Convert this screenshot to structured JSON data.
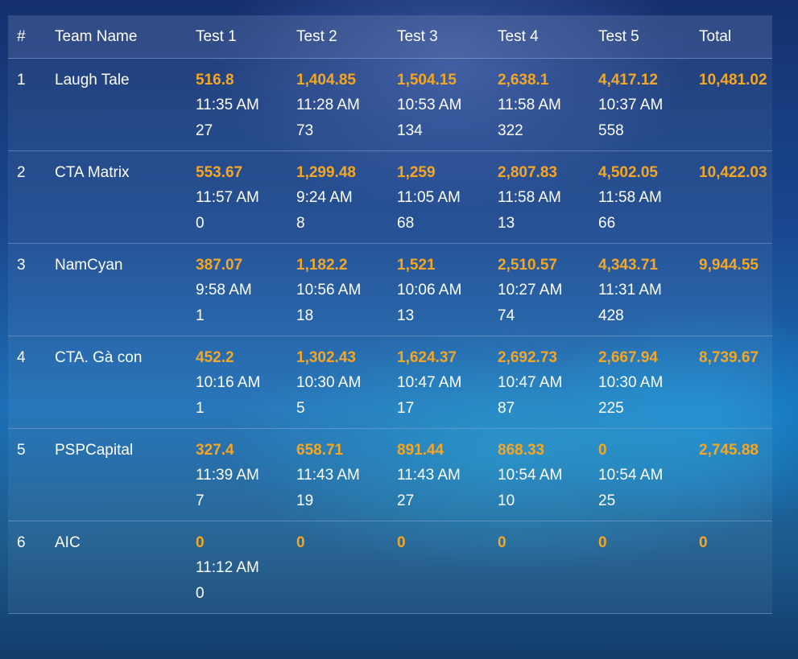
{
  "columns": [
    "#",
    "Team Name",
    "Test 1",
    "Test 2",
    "Test 3",
    "Test 4",
    "Test 5",
    "Total"
  ],
  "colors": {
    "score": "#f5a623",
    "text": "#ffffff"
  },
  "rows": [
    {
      "rank": "1",
      "team": "Laugh Tale",
      "tests": [
        {
          "score": "516.8",
          "time": "11:35 AM",
          "count": "27"
        },
        {
          "score": "1,404.85",
          "time": "11:28 AM",
          "count": "73"
        },
        {
          "score": "1,504.15",
          "time": "10:53 AM",
          "count": "134"
        },
        {
          "score": "2,638.1",
          "time": "11:58 AM",
          "count": "322"
        },
        {
          "score": "4,417.12",
          "time": "10:37 AM",
          "count": "558"
        }
      ],
      "total": "10,481.02"
    },
    {
      "rank": "2",
      "team": "CTA Matrix",
      "tests": [
        {
          "score": "553.67",
          "time": "11:57 AM",
          "count": "0"
        },
        {
          "score": "1,299.48",
          "time": "9:24 AM",
          "count": "8"
        },
        {
          "score": "1,259",
          "time": "11:05 AM",
          "count": "68"
        },
        {
          "score": "2,807.83",
          "time": "11:58 AM",
          "count": "13"
        },
        {
          "score": "4,502.05",
          "time": "11:58 AM",
          "count": "66"
        }
      ],
      "total": "10,422.03"
    },
    {
      "rank": "3",
      "team": "NamCyan",
      "tests": [
        {
          "score": "387.07",
          "time": "9:58 AM",
          "count": "1"
        },
        {
          "score": "1,182.2",
          "time": "10:56 AM",
          "count": "18"
        },
        {
          "score": "1,521",
          "time": "10:06 AM",
          "count": "13"
        },
        {
          "score": "2,510.57",
          "time": "10:27 AM",
          "count": "74"
        },
        {
          "score": "4,343.71",
          "time": "11:31 AM",
          "count": "428"
        }
      ],
      "total": "9,944.55"
    },
    {
      "rank": "4",
      "team": "CTA. Gà con",
      "tests": [
        {
          "score": "452.2",
          "time": "10:16 AM",
          "count": "1"
        },
        {
          "score": "1,302.43",
          "time": "10:30 AM",
          "count": "5"
        },
        {
          "score": "1,624.37",
          "time": "10:47 AM",
          "count": "17"
        },
        {
          "score": "2,692.73",
          "time": "10:47 AM",
          "count": "87"
        },
        {
          "score": "2,667.94",
          "time": "10:30 AM",
          "count": "225"
        }
      ],
      "total": "8,739.67"
    },
    {
      "rank": "5",
      "team": "PSPCapital",
      "tests": [
        {
          "score": "327.4",
          "time": "11:39 AM",
          "count": "7"
        },
        {
          "score": "658.71",
          "time": "11:43 AM",
          "count": "19"
        },
        {
          "score": "891.44",
          "time": "11:43 AM",
          "count": "27"
        },
        {
          "score": "868.33",
          "time": "10:54 AM",
          "count": "10"
        },
        {
          "score": "0",
          "time": "10:54 AM",
          "count": "25"
        }
      ],
      "total": "2,745.88"
    },
    {
      "rank": "6",
      "team": "AIC",
      "tests": [
        {
          "score": "0",
          "time": "11:12 AM",
          "count": "0"
        },
        {
          "score": "0",
          "time": "",
          "count": ""
        },
        {
          "score": "0",
          "time": "",
          "count": ""
        },
        {
          "score": "0",
          "time": "",
          "count": ""
        },
        {
          "score": "0",
          "time": "",
          "count": ""
        }
      ],
      "total": "0"
    }
  ]
}
